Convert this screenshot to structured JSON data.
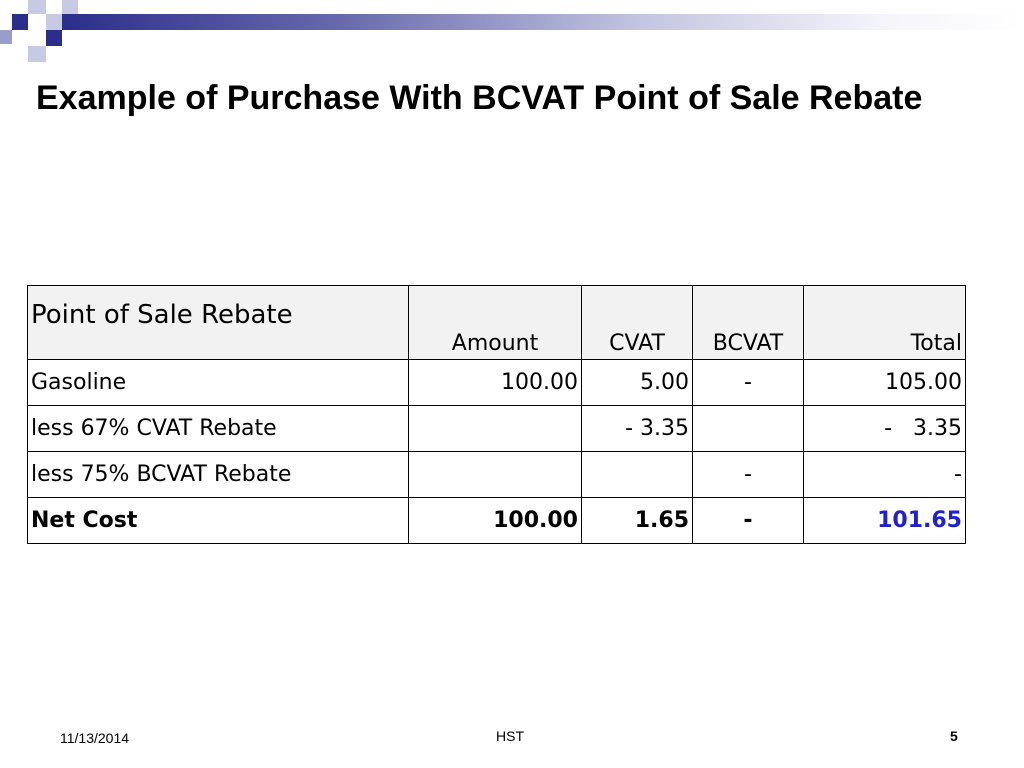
{
  "slide": {
    "title": "Example of Purchase With BCVAT Point of Sale Rebate"
  },
  "table": {
    "headers": {
      "label": "Point of Sale Rebate",
      "amount": "Amount",
      "cvat": "CVAT",
      "bcvat": "BCVAT",
      "total": "Total"
    },
    "rows": [
      {
        "label": "Gasoline",
        "amount": "100.00",
        "cvat": "5.00",
        "bcvat": "-",
        "total": "105.00"
      },
      {
        "label": "less 67% CVAT Rebate",
        "amount": "",
        "cvat": "- 3.35",
        "bcvat": "",
        "total": "-   3.35"
      },
      {
        "label": "less 75% BCVAT Rebate",
        "amount": "",
        "cvat": "",
        "bcvat": "-",
        "total": "-"
      }
    ],
    "net": {
      "label": "Net Cost",
      "amount": "100.00",
      "cvat": "1.65",
      "bcvat": "-",
      "total": "101.65"
    }
  },
  "footer": {
    "date": "11/13/2014",
    "center": "HST",
    "page": "5"
  },
  "colors": {
    "accent_navy": "#2b2e8a",
    "total_highlight": "#2020d0",
    "header_fill": "#f2f2f2"
  }
}
